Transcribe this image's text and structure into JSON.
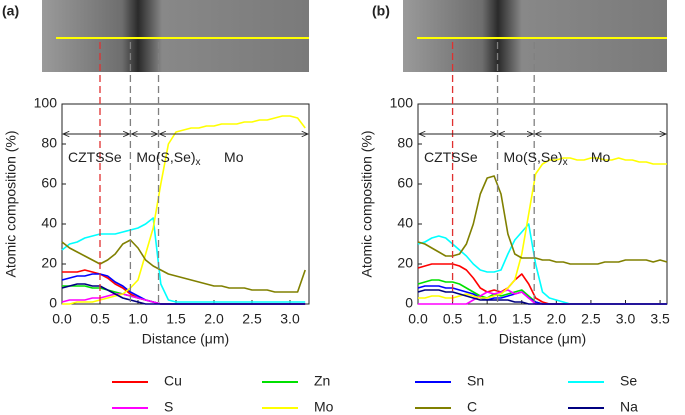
{
  "chart_data": [
    {
      "type": "line",
      "panel_label": "(a)",
      "ylabel": "Atomic composition  (%)",
      "xlabel": "Distance (μm)",
      "xlim": [
        0,
        3.25
      ],
      "ylim": [
        0,
        100
      ],
      "xticks": [
        {
          "value": 0,
          "label": "0.0"
        },
        0.5,
        {
          "value": 1,
          "label": "1.0"
        },
        1.5,
        {
          "value": 2,
          "label": "2.0"
        },
        2.5,
        {
          "value": 3,
          "label": "3.0"
        }
      ],
      "yticks": [
        0,
        20,
        40,
        60,
        80,
        100
      ],
      "markers": [
        {
          "x": 0.5,
          "color": "#e03030"
        },
        {
          "x": 0.9,
          "color": "#808080"
        },
        {
          "x": 1.27,
          "color": "#808080"
        }
      ],
      "regions": [
        {
          "label": "CZTSSe"
        },
        {
          "label": "Mo(S,Se)",
          "sub": "x"
        },
        {
          "label": "Mo"
        }
      ],
      "x": [
        0,
        0.1,
        0.2,
        0.3,
        0.4,
        0.5,
        0.6,
        0.7,
        0.8,
        0.9,
        1,
        1.1,
        1.2,
        1.3,
        1.4,
        1.5,
        1.6,
        1.7,
        1.8,
        1.9,
        2,
        2.1,
        2.2,
        2.3,
        2.4,
        2.5,
        2.6,
        2.7,
        2.8,
        2.9,
        3,
        3.1,
        3.2
      ],
      "series": [
        {
          "name": "Cu",
          "color": "#ff0000",
          "values": [
            16,
            16,
            16,
            17,
            16,
            15,
            13,
            10,
            8,
            5,
            3,
            2,
            1,
            0,
            0,
            0,
            0,
            0,
            0,
            0,
            0,
            0,
            0,
            0,
            0,
            0,
            0,
            0,
            0,
            0,
            0,
            0,
            0
          ]
        },
        {
          "name": "Zn",
          "color": "#00e000",
          "values": [
            9,
            9,
            9,
            9,
            8,
            8,
            7,
            6,
            5,
            4,
            3,
            2,
            1,
            0,
            0,
            0,
            0,
            0,
            0,
            0,
            0,
            0,
            0,
            0,
            0,
            0,
            0,
            0,
            0,
            0,
            0,
            0,
            0
          ]
        },
        {
          "name": "Sn",
          "color": "#0000ff",
          "values": [
            12,
            13,
            14,
            14,
            15,
            15,
            14,
            11,
            9,
            6,
            4,
            2,
            1,
            0,
            0,
            0,
            0,
            0,
            0,
            0,
            0,
            0,
            0,
            0,
            0,
            0,
            0,
            0,
            0,
            0,
            0,
            0,
            0
          ]
        },
        {
          "name": "Se",
          "color": "#00ffff",
          "values": [
            27,
            30,
            31,
            33,
            34,
            35,
            35,
            35,
            36,
            37,
            38,
            40,
            43,
            10,
            2,
            1,
            1,
            1,
            1,
            1,
            1,
            1,
            1,
            1,
            1,
            1,
            1,
            1,
            1,
            1,
            1,
            1,
            1
          ]
        },
        {
          "name": "S",
          "color": "#ff00ff",
          "values": [
            1,
            2,
            2,
            2,
            3,
            3,
            4,
            5,
            5,
            4,
            3,
            2,
            1,
            0,
            0,
            0,
            0,
            0,
            0,
            0,
            0,
            0,
            0,
            0,
            0,
            0,
            0,
            0,
            0,
            0,
            0,
            0,
            0
          ]
        },
        {
          "name": "Mo",
          "color": "#ffff00",
          "values": [
            0,
            0,
            1,
            1,
            1,
            2,
            3,
            4,
            5,
            8,
            12,
            25,
            38,
            60,
            80,
            86,
            87,
            88,
            88,
            89,
            89,
            90,
            90,
            90,
            91,
            91,
            92,
            92,
            93,
            94,
            94,
            93,
            88
          ]
        },
        {
          "name": "C",
          "color": "#808000",
          "values": [
            31,
            28,
            26,
            24,
            22,
            20,
            22,
            25,
            30,
            32,
            28,
            22,
            19,
            17,
            15,
            14,
            13,
            12,
            11,
            10,
            9,
            9,
            8,
            8,
            8,
            7,
            7,
            7,
            6,
            6,
            6,
            6,
            17
          ]
        },
        {
          "name": "Na",
          "color": "#000080",
          "values": [
            8,
            9,
            10,
            10,
            9,
            9,
            7,
            5,
            3,
            2,
            1,
            0,
            0,
            0,
            0,
            0,
            0,
            0,
            0,
            0,
            0,
            0,
            0,
            0,
            0,
            0,
            0,
            0,
            0,
            0,
            0,
            0,
            0
          ]
        }
      ]
    },
    {
      "type": "line",
      "panel_label": "(b)",
      "ylabel": "Atomic composition  (%)",
      "xlabel": "Distance (μm)",
      "xlim": [
        0,
        3.6
      ],
      "ylim": [
        0,
        100
      ],
      "xticks": [
        {
          "value": 0,
          "label": "0.0"
        },
        0.5,
        {
          "value": 1,
          "label": "1.0"
        },
        1.5,
        {
          "value": 2,
          "label": "2.0"
        },
        2.5,
        {
          "value": 3,
          "label": "3.0"
        },
        3.5
      ],
      "yticks": [
        0,
        20,
        40,
        60,
        80,
        100
      ],
      "markers": [
        {
          "x": 0.5,
          "color": "#e03030"
        },
        {
          "x": 1.15,
          "color": "#808080"
        },
        {
          "x": 1.68,
          "color": "#808080"
        }
      ],
      "regions": [
        {
          "label": "CZTSSe"
        },
        {
          "label": "Mo(S,Se)",
          "sub": "x"
        },
        {
          "label": "Mo"
        }
      ],
      "x": [
        0,
        0.1,
        0.2,
        0.3,
        0.4,
        0.5,
        0.6,
        0.7,
        0.8,
        0.9,
        1,
        1.1,
        1.2,
        1.3,
        1.4,
        1.5,
        1.6,
        1.7,
        1.8,
        1.9,
        2,
        2.1,
        2.2,
        2.3,
        2.4,
        2.5,
        2.6,
        2.7,
        2.8,
        2.9,
        3,
        3.1,
        3.2,
        3.3,
        3.4,
        3.5,
        3.6
      ],
      "series": [
        {
          "name": "Cu",
          "color": "#ff0000",
          "values": [
            18,
            19,
            20,
            20,
            20,
            20,
            19,
            17,
            13,
            8,
            6,
            7,
            6,
            8,
            12,
            15,
            10,
            3,
            1,
            0,
            0,
            0,
            0,
            0,
            0,
            0,
            0,
            0,
            0,
            0,
            0,
            0,
            0,
            0,
            0,
            0,
            0
          ]
        },
        {
          "name": "Zn",
          "color": "#00e000",
          "values": [
            10,
            11,
            12,
            12,
            11,
            11,
            10,
            8,
            6,
            4,
            3,
            5,
            4,
            5,
            6,
            7,
            4,
            1,
            0,
            0,
            0,
            0,
            0,
            0,
            0,
            0,
            0,
            0,
            0,
            0,
            0,
            0,
            0,
            0,
            0,
            0,
            0
          ]
        },
        {
          "name": "Sn",
          "color": "#0000ff",
          "values": [
            8,
            9,
            9,
            9,
            8,
            8,
            7,
            6,
            5,
            3,
            2,
            3,
            3,
            4,
            5,
            6,
            3,
            1,
            0,
            0,
            0,
            0,
            0,
            0,
            0,
            0,
            0,
            0,
            0,
            0,
            0,
            0,
            0,
            0,
            0,
            0,
            0
          ]
        },
        {
          "name": "Se",
          "color": "#00ffff",
          "values": [
            30,
            31,
            33,
            34,
            33,
            30,
            27,
            24,
            20,
            17,
            16,
            16,
            17,
            25,
            32,
            36,
            40,
            20,
            6,
            3,
            2,
            1,
            0,
            0,
            0,
            0,
            0,
            0,
            0,
            0,
            0,
            0,
            0,
            0,
            0,
            0,
            0
          ]
        },
        {
          "name": "S",
          "color": "#ff00ff",
          "values": [
            0,
            0,
            0,
            0,
            0,
            0,
            0,
            0,
            2,
            4,
            6,
            5,
            6,
            7,
            5,
            6,
            3,
            0,
            0,
            0,
            0,
            0,
            0,
            0,
            0,
            0,
            0,
            0,
            0,
            0,
            0,
            0,
            0,
            0,
            0,
            0,
            0
          ]
        },
        {
          "name": "Mo",
          "color": "#ffff00",
          "values": [
            3,
            3,
            4,
            4,
            3,
            3,
            4,
            5,
            4,
            3,
            3,
            4,
            5,
            8,
            12,
            25,
            45,
            65,
            70,
            72,
            72,
            73,
            73,
            72,
            72,
            73,
            73,
            72,
            72,
            73,
            72,
            72,
            71,
            71,
            70,
            70,
            70
          ]
        },
        {
          "name": "C",
          "color": "#808000",
          "values": [
            31,
            30,
            28,
            26,
            24,
            24,
            25,
            30,
            40,
            55,
            63,
            64,
            55,
            35,
            25,
            23,
            23,
            23,
            22,
            22,
            21,
            21,
            20,
            20,
            20,
            20,
            20,
            21,
            21,
            21,
            22,
            22,
            22,
            22,
            21,
            22,
            21
          ]
        },
        {
          "name": "Na",
          "color": "#000080",
          "values": [
            6,
            7,
            7,
            7,
            6,
            6,
            5,
            4,
            3,
            2,
            2,
            2,
            2,
            2,
            1,
            1,
            0,
            0,
            0,
            0,
            0,
            0,
            0,
            0,
            0,
            0,
            0,
            0,
            0,
            0,
            0,
            0,
            0,
            0,
            0,
            0,
            0
          ]
        }
      ]
    }
  ]
}
